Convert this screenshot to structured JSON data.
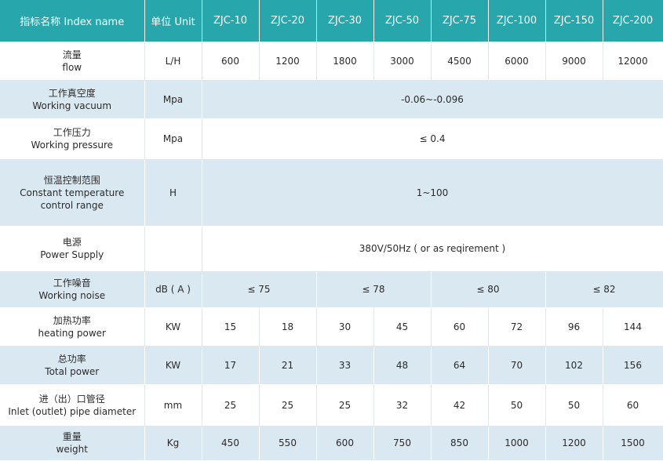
{
  "header": {
    "name": "指标名称 Index name",
    "unit": "单位 Unit",
    "models": [
      "ZJC-10",
      "ZJC-20",
      "ZJC-30",
      "ZJC-50",
      "ZJC-75",
      "ZJC-100",
      "ZJC-150",
      "ZJC-200"
    ]
  },
  "rows": [
    {
      "zh": "流量",
      "en": "flow",
      "unit": "L/H",
      "values": [
        "600",
        "1200",
        "1800",
        "3000",
        "4500",
        "6000",
        "9000",
        "12000"
      ]
    },
    {
      "zh": "工作真空度",
      "en": "Working vacuum",
      "unit": "Mpa",
      "span": "-0.06~-0.096"
    },
    {
      "zh": "工作压力",
      "en": "Working pressure",
      "unit": "Mpa",
      "span": "≤ 0.4"
    },
    {
      "zh": "恒温控制范围",
      "en": "Constant temperature",
      "en2": "control range",
      "unit": "H",
      "span": "1~100"
    },
    {
      "zh": "电源",
      "en": "Power Supply",
      "unit": "",
      "span": "380V/50Hz ( or as reqirement )"
    },
    {
      "zh": "工作噪音",
      "en": "Working noise",
      "unit": "dB ( A )",
      "groups": [
        "≤ 75",
        "≤ 78",
        "≤ 80",
        "≤ 82"
      ]
    },
    {
      "zh": "加热功率",
      "en": "heating power",
      "unit": "KW",
      "values": [
        "15",
        "18",
        "30",
        "45",
        "60",
        "72",
        "96",
        "144"
      ]
    },
    {
      "zh": "总功率",
      "en": "Total power",
      "unit": "KW",
      "values": [
        "17",
        "21",
        "33",
        "48",
        "64",
        "70",
        "102",
        "156"
      ]
    },
    {
      "zh": "进（出）口管径",
      "en": "Inlet (outlet) pipe diameter",
      "unit": "mm",
      "values": [
        "25",
        "25",
        "25",
        "32",
        "42",
        "50",
        "50",
        "60"
      ]
    },
    {
      "zh": "重量",
      "en": "weight",
      "unit": "Kg",
      "values": [
        "450",
        "550",
        "600",
        "750",
        "850",
        "1000",
        "1200",
        "1500"
      ]
    }
  ]
}
